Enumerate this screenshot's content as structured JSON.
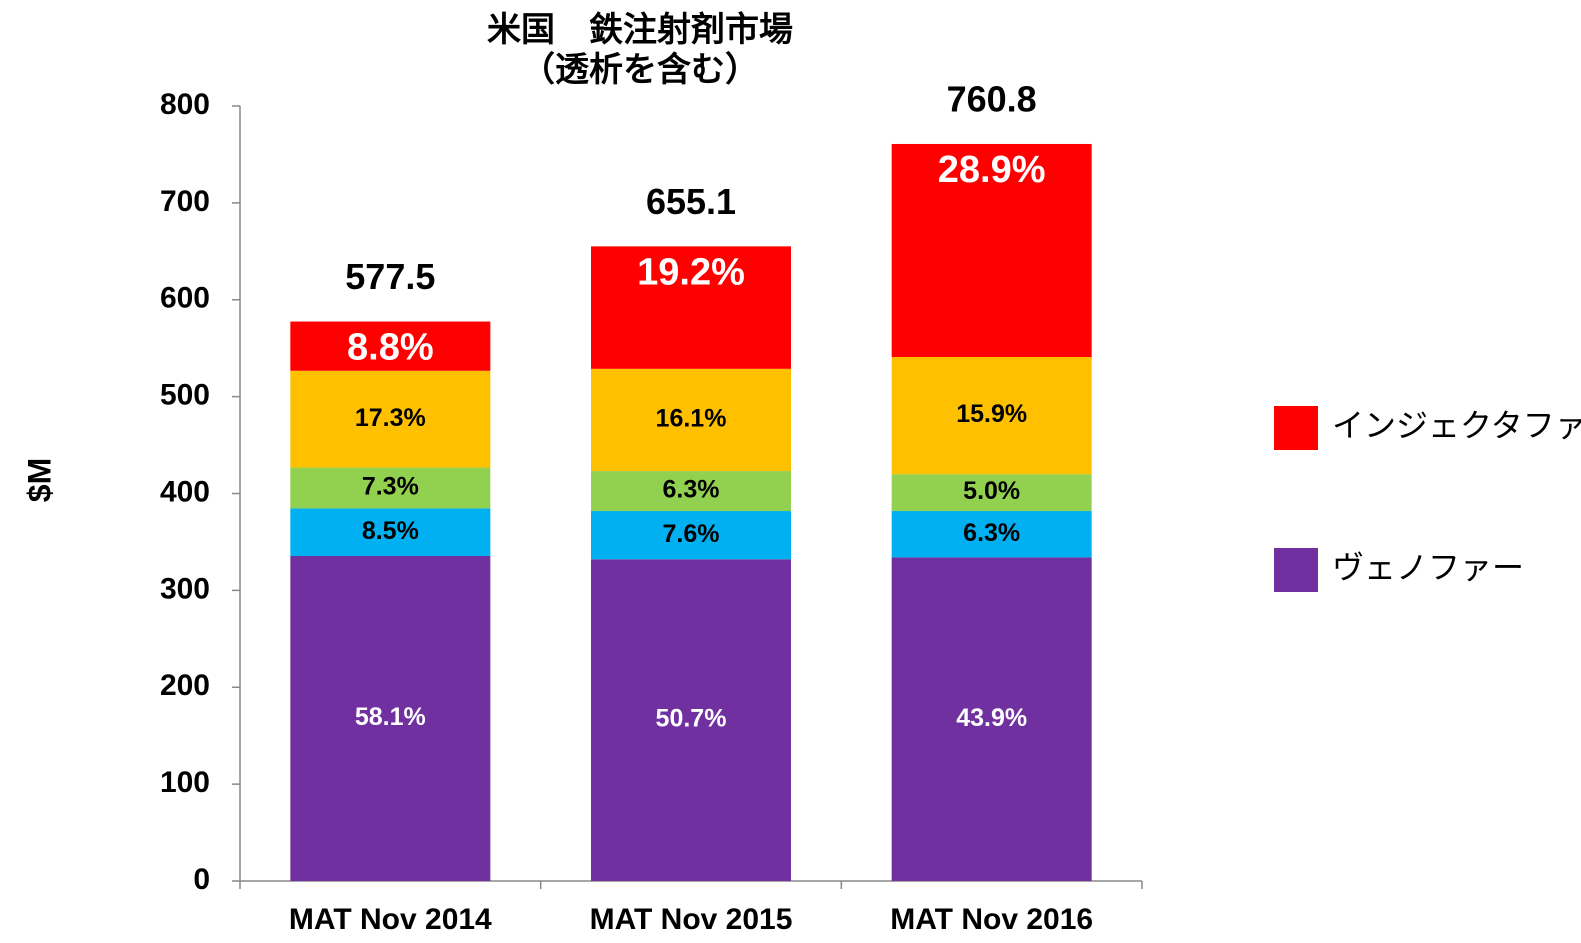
{
  "chart_data": {
    "type": "stacked_bar",
    "title": [
      "米国　鉄注射剤市場",
      "（透析を含む）"
    ],
    "ylabel": "$M",
    "categories": [
      "MAT Nov 2014",
      "MAT Nov 2015",
      "MAT Nov 2016"
    ],
    "totals": [
      577.5,
      655.1,
      760.8
    ],
    "series": [
      {
        "name": "ヴェノファー",
        "color": "#7030a0",
        "label_color": "#ffffff",
        "values": [
          335.5,
          332.1,
          334.0
        ],
        "share_labels": [
          "58.1%",
          "50.7%",
          "43.9%"
        ]
      },
      {
        "name": null,
        "color": "#00b0f0",
        "label_color": "#000000",
        "values": [
          49.1,
          49.8,
          47.9
        ],
        "share_labels": [
          "8.5%",
          "7.6%",
          "6.3%"
        ]
      },
      {
        "name": null,
        "color": "#92d050",
        "label_color": "#000000",
        "values": [
          42.2,
          41.3,
          38.0
        ],
        "share_labels": [
          "7.3%",
          "6.3%",
          "5.0%"
        ]
      },
      {
        "name": null,
        "color": "#ffc000",
        "label_color": "#000000",
        "values": [
          99.9,
          105.5,
          121.0
        ],
        "share_labels": [
          "17.3%",
          "16.1%",
          "15.9%"
        ]
      },
      {
        "name": "インジェクタファー",
        "color": "#ff0000",
        "label_color": "#ffffff",
        "values": [
          50.8,
          126.4,
          219.9
        ],
        "share_labels": [
          "8.8%",
          "19.2%",
          "28.9%"
        ]
      }
    ],
    "ylim": [
      0,
      800
    ],
    "yticks": [
      0,
      100,
      200,
      300,
      400,
      500,
      600,
      700,
      800
    ],
    "grid": false,
    "legend": "right"
  }
}
